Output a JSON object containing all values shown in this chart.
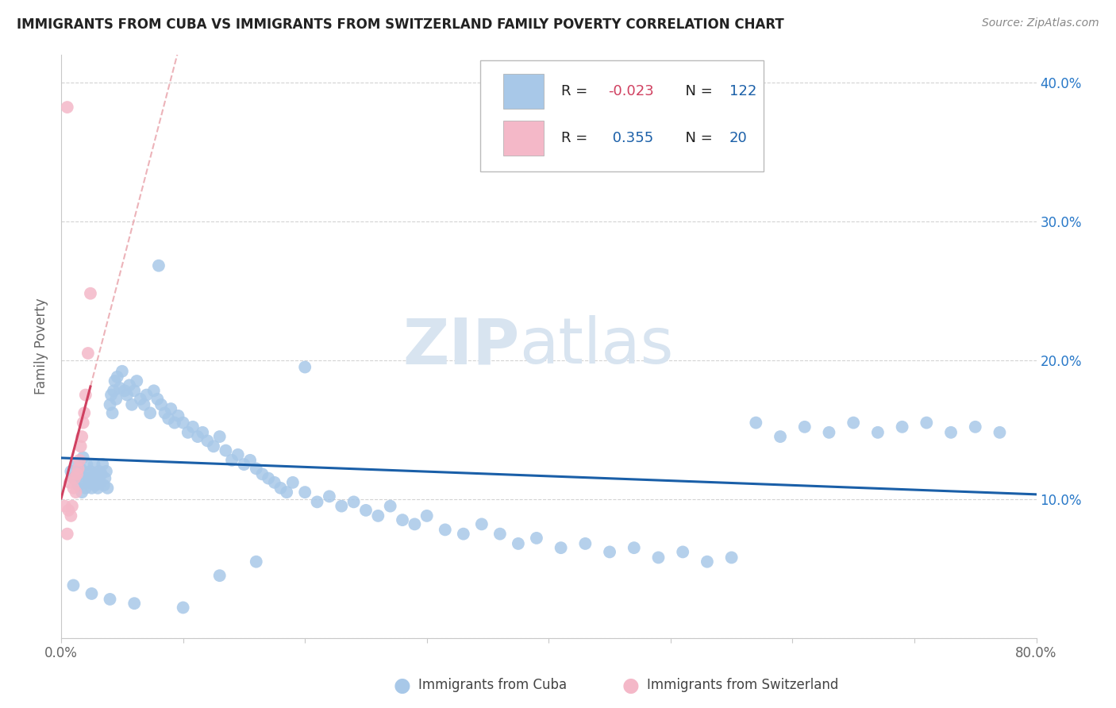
{
  "title": "IMMIGRANTS FROM CUBA VS IMMIGRANTS FROM SWITZERLAND FAMILY POVERTY CORRELATION CHART",
  "source": "Source: ZipAtlas.com",
  "ylabel": "Family Poverty",
  "xlim": [
    0.0,
    0.8
  ],
  "ylim": [
    0.0,
    0.42
  ],
  "x_tick_positions": [
    0.0,
    0.1,
    0.2,
    0.3,
    0.4,
    0.5,
    0.6,
    0.7,
    0.8
  ],
  "x_tick_labels": [
    "0.0%",
    "",
    "",
    "",
    "",
    "",
    "",
    "",
    "80.0%"
  ],
  "y_tick_positions": [
    0.0,
    0.1,
    0.2,
    0.3,
    0.4
  ],
  "y_tick_labels_right": [
    "",
    "10.0%",
    "20.0%",
    "30.0%",
    "40.0%"
  ],
  "cuba_R": -0.023,
  "cuba_N": 122,
  "swiss_R": 0.355,
  "swiss_N": 20,
  "cuba_color": "#a8c8e8",
  "swiss_color": "#f4b8c8",
  "cuba_line_color": "#1a5fa8",
  "swiss_line_color": "#d04060",
  "diag_line_color": "#e8a0a8",
  "watermark_color": "#d8e4f0",
  "legend_R_neg_color": "#d04060",
  "legend_R_pos_color": "#1a5fa8",
  "legend_N_color": "#1a5fa8",
  "cuba_x": [
    0.008,
    0.01,
    0.012,
    0.014,
    0.015,
    0.016,
    0.017,
    0.018,
    0.019,
    0.02,
    0.021,
    0.022,
    0.022,
    0.023,
    0.024,
    0.025,
    0.026,
    0.027,
    0.028,
    0.028,
    0.029,
    0.03,
    0.031,
    0.032,
    0.033,
    0.034,
    0.035,
    0.036,
    0.037,
    0.038,
    0.04,
    0.041,
    0.042,
    0.043,
    0.044,
    0.045,
    0.046,
    0.048,
    0.05,
    0.052,
    0.054,
    0.056,
    0.058,
    0.06,
    0.062,
    0.065,
    0.068,
    0.07,
    0.073,
    0.076,
    0.079,
    0.082,
    0.085,
    0.088,
    0.09,
    0.093,
    0.096,
    0.1,
    0.104,
    0.108,
    0.112,
    0.116,
    0.12,
    0.125,
    0.13,
    0.135,
    0.14,
    0.145,
    0.15,
    0.155,
    0.16,
    0.165,
    0.17,
    0.175,
    0.18,
    0.185,
    0.19,
    0.2,
    0.21,
    0.22,
    0.23,
    0.24,
    0.25,
    0.26,
    0.27,
    0.28,
    0.29,
    0.3,
    0.315,
    0.33,
    0.345,
    0.36,
    0.375,
    0.39,
    0.41,
    0.43,
    0.45,
    0.47,
    0.49,
    0.51,
    0.53,
    0.55,
    0.57,
    0.59,
    0.61,
    0.63,
    0.65,
    0.67,
    0.69,
    0.71,
    0.73,
    0.75,
    0.77,
    0.01,
    0.025,
    0.04,
    0.06,
    0.08,
    0.1,
    0.13,
    0.16,
    0.2
  ],
  "cuba_y": [
    0.12,
    0.115,
    0.125,
    0.11,
    0.118,
    0.122,
    0.105,
    0.13,
    0.112,
    0.108,
    0.125,
    0.115,
    0.118,
    0.112,
    0.12,
    0.108,
    0.115,
    0.125,
    0.11,
    0.118,
    0.115,
    0.108,
    0.12,
    0.112,
    0.118,
    0.125,
    0.11,
    0.115,
    0.12,
    0.108,
    0.168,
    0.175,
    0.162,
    0.178,
    0.185,
    0.172,
    0.188,
    0.18,
    0.192,
    0.178,
    0.175,
    0.182,
    0.168,
    0.178,
    0.185,
    0.172,
    0.168,
    0.175,
    0.162,
    0.178,
    0.172,
    0.168,
    0.162,
    0.158,
    0.165,
    0.155,
    0.16,
    0.155,
    0.148,
    0.152,
    0.145,
    0.148,
    0.142,
    0.138,
    0.145,
    0.135,
    0.128,
    0.132,
    0.125,
    0.128,
    0.122,
    0.118,
    0.115,
    0.112,
    0.108,
    0.105,
    0.112,
    0.105,
    0.098,
    0.102,
    0.095,
    0.098,
    0.092,
    0.088,
    0.095,
    0.085,
    0.082,
    0.088,
    0.078,
    0.075,
    0.082,
    0.075,
    0.068,
    0.072,
    0.065,
    0.068,
    0.062,
    0.065,
    0.058,
    0.062,
    0.055,
    0.058,
    0.155,
    0.145,
    0.152,
    0.148,
    0.155,
    0.148,
    0.152,
    0.155,
    0.148,
    0.152,
    0.148,
    0.038,
    0.032,
    0.028,
    0.025,
    0.268,
    0.022,
    0.045,
    0.055,
    0.195
  ],
  "swiss_x": [
    0.003,
    0.005,
    0.006,
    0.007,
    0.008,
    0.009,
    0.01,
    0.011,
    0.012,
    0.013,
    0.014,
    0.015,
    0.016,
    0.017,
    0.018,
    0.019,
    0.02,
    0.022,
    0.024,
    0.005
  ],
  "swiss_y": [
    0.095,
    0.075,
    0.092,
    0.112,
    0.088,
    0.095,
    0.108,
    0.115,
    0.105,
    0.118,
    0.122,
    0.128,
    0.138,
    0.145,
    0.155,
    0.162,
    0.175,
    0.205,
    0.248,
    0.382
  ]
}
